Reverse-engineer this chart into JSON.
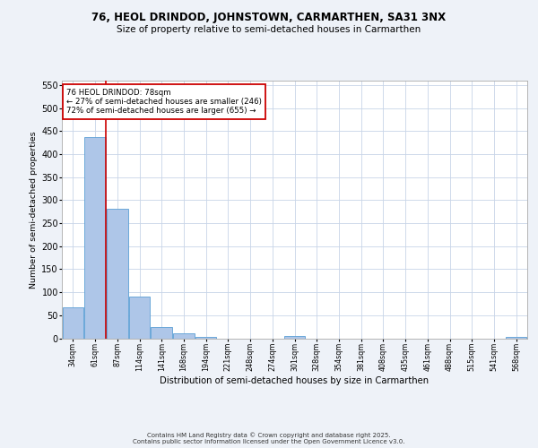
{
  "title1": "76, HEOL DRINDOD, JOHNSTOWN, CARMARTHEN, SA31 3NX",
  "title2": "Size of property relative to semi-detached houses in Carmarthen",
  "xlabel": "Distribution of semi-detached houses by size in Carmarthen",
  "ylabel": "Number of semi-detached properties",
  "bar_values": [
    68,
    437,
    281,
    90,
    24,
    10,
    3,
    0,
    0,
    0,
    4,
    0,
    0,
    0,
    0,
    0,
    0,
    0,
    0,
    0,
    3
  ],
  "bin_labels": [
    "34sqm",
    "61sqm",
    "87sqm",
    "114sqm",
    "141sqm",
    "168sqm",
    "194sqm",
    "221sqm",
    "248sqm",
    "274sqm",
    "301sqm",
    "328sqm",
    "354sqm",
    "381sqm",
    "408sqm",
    "435sqm",
    "461sqm",
    "488sqm",
    "515sqm",
    "541sqm",
    "568sqm"
  ],
  "bar_color": "#aec6e8",
  "bar_edge_color": "#5a9fd4",
  "vline_color": "#cc0000",
  "annotation_text": "76 HEOL DRINDOD: 78sqm\n← 27% of semi-detached houses are smaller (246)\n72% of semi-detached houses are larger (655) →",
  "annotation_box_color": "#ffffff",
  "annotation_box_edgecolor": "#cc0000",
  "ylim": [
    0,
    560
  ],
  "yticks": [
    0,
    50,
    100,
    150,
    200,
    250,
    300,
    350,
    400,
    450,
    500,
    550
  ],
  "footer": "Contains HM Land Registry data © Crown copyright and database right 2025.\nContains public sector information licensed under the Open Government Licence v3.0.",
  "bg_color": "#eef2f8",
  "plot_bg_color": "#ffffff",
  "grid_color": "#c8d4e8"
}
